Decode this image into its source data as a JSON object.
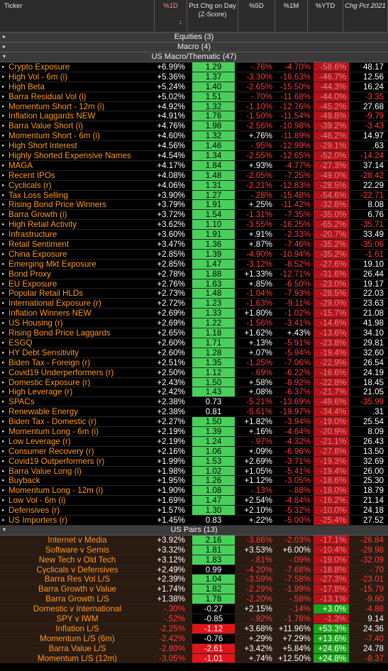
{
  "header": {
    "ticker": "Ticker",
    "d1": "%1D",
    "zscore": "Pct Chg on Day (Z-Score)",
    "d5": "%5D",
    "m1": "%1M",
    "ytd": "%YTD",
    "c2021": "Chg Pct 2021"
  },
  "groups": {
    "equities": "Equities (3)",
    "macro": "Macro (4)",
    "usmacro": "US Macro/Thematic (47)",
    "uspairs": "US Pairs (13)"
  },
  "rows": [
    {
      "name": "Crypto Exposure",
      "d1": "+6.99%",
      "z": "1.29",
      "d5": "-.76%",
      "m1": "-4.70%",
      "ytd": "-58.6%",
      "y21": "48.17"
    },
    {
      "name": "High Vol - 6m (i)",
      "d1": "+5.36%",
      "z": "1.37",
      "d5": "-3.30%",
      "m1": "-16.63%",
      "ytd": "-46.7%",
      "y21": "12.56"
    },
    {
      "name": "High Beta",
      "d1": "+5.24%",
      "z": "1.40",
      "d5": "-2.65%",
      "m1": "-15.50%",
      "ytd": "-44.3%",
      "y21": "16.24"
    },
    {
      "name": "Barra Residual Vol (i)",
      "d1": "+5.02%",
      "z": "1.51",
      "d5": "-.70%",
      "m1": "-11.68%",
      "ytd": "-44.0%",
      "y21": "-3.35"
    },
    {
      "name": "Momentum Short - 12m (i)",
      "d1": "+4.92%",
      "z": "1.32",
      "d5": "-1.10%",
      "m1": "-12.76%",
      "ytd": "-45.2%",
      "y21": "27.68"
    },
    {
      "name": "Inflation Laggards NEW",
      "d1": "+4.91%",
      "z": "1.76",
      "d5": "-1.50%",
      "m1": "-11.54%",
      "ytd": "-49.8%",
      "y21": "-9.79"
    },
    {
      "name": "Barra Value Short (i)",
      "d1": "+4.76%",
      "z": "1.98",
      "d5": "-2.56%",
      "m1": "-10.98%",
      "ytd": "-39.2%",
      "y21": "-3.43"
    },
    {
      "name": "Momentum Short - 6m (i)",
      "d1": "+4.60%",
      "z": "1.32",
      "d5": "+.76%",
      "m1": "-11.89%",
      "ytd": "-46.2%",
      "y21": "14.97"
    },
    {
      "name": "High Short Interest",
      "d1": "+4.56%",
      "z": "1.46",
      "d5": "-.95%",
      "m1": "-12.99%",
      "ytd": "-29.1%",
      "y21": ".63"
    },
    {
      "name": "Highly Shorted Expensive Names",
      "d1": "+4.54%",
      "z": "1.34",
      "d5": "-2.55%",
      "m1": "-12.65%",
      "ytd": "-52.0%",
      "y21": "-14.24"
    },
    {
      "name": "MAGA",
      "d1": "+4.17%",
      "z": "1.84",
      "d5": "+.93%",
      "m1": "-4.77%",
      "ytd": "-27.3%",
      "y21": "37.14"
    },
    {
      "name": "Recent IPOs",
      "d1": "+4.08%",
      "z": "1.48",
      "d5": "-2.05%",
      "m1": "-7.25%",
      "ytd": "-49.0%",
      "y21": "-28.42"
    },
    {
      "name": "Cyclicals (r)",
      "d1": "+4.06%",
      "z": "1.31",
      "d5": "-2.21%",
      "m1": "-12.83%",
      "ytd": "-28.5%",
      "y21": "22.29"
    },
    {
      "name": "Tax Loss Selling",
      "d1": "+3.90%",
      "z": "1.27",
      "d5": "-.28%",
      "m1": "-15.48%",
      "ytd": "-54.6%",
      "y21": "-22.71"
    },
    {
      "name": "Rising Bond Price Winners",
      "d1": "+3.79%",
      "z": "1.91",
      "d5": "+.25%",
      "m1": "-11.42%",
      "ytd": "-32.8%",
      "y21": "8.08"
    },
    {
      "name": "Barra Growth (i)",
      "d1": "+3.72%",
      "z": "1.54",
      "d5": "-1.31%",
      "m1": "-7.35%",
      "ytd": "-35.0%",
      "y21": "6.76"
    },
    {
      "name": "High Retail Activity",
      "d1": "+3.62%",
      "z": "1.10",
      "d5": "-3.55%",
      "m1": "-16.25%",
      "ytd": "-65.2%",
      "y21": "-35.71"
    },
    {
      "name": "Infrastructure",
      "d1": "+3.60%",
      "z": "1.91",
      "d5": "+.91%",
      "m1": "-2.33%",
      "ytd": "-20.7%",
      "y21": "33.49"
    },
    {
      "name": "Retail Sentiment",
      "d1": "+3.47%",
      "z": "1.36",
      "d5": "+.87%",
      "m1": "-7.46%",
      "ytd": "-35.2%",
      "y21": "-35.06"
    },
    {
      "name": "China Exposure",
      "d1": "+2.85%",
      "z": "1.39",
      "d5": "-4.90%",
      "m1": "-10.94%",
      "ytd": "-35.2%",
      "y21": "-1.61"
    },
    {
      "name": "Emerging Mkt Exposure",
      "d1": "+2.85%",
      "z": "1.47",
      "d5": "-3.12%",
      "m1": "-8.52%",
      "ytd": "-27.6%",
      "y21": "19.10"
    },
    {
      "name": "Bond Proxy",
      "d1": "+2.78%",
      "z": "1.88",
      "d5": "+1.33%",
      "m1": "-12.71%",
      "ytd": "-31.6%",
      "y21": "26.44"
    },
    {
      "name": "EU Exposure",
      "d1": "+2.76%",
      "z": "1.63",
      "d5": "+.85%",
      "m1": "-6.50%",
      "ytd": "-23.0%",
      "y21": "19.17"
    },
    {
      "name": "Popular Retail HLDs",
      "d1": "+2.73%",
      "z": "1.48",
      "d5": "-1.04%",
      "m1": "-7.93%",
      "ytd": "-28.5%",
      "y21": "22.03"
    },
    {
      "name": "International Exposure (r)",
      "d1": "+2.72%",
      "z": "1.23",
      "d5": "-1.63%",
      "m1": "-9.11%",
      "ytd": "-29.0%",
      "y21": "23.63"
    },
    {
      "name": "Inflation Winners NEW",
      "d1": "+2.69%",
      "z": "1.33",
      "d5": "+1.80%",
      "m1": "-1.02%",
      "ytd": "-15.7%",
      "y21": "21.08"
    },
    {
      "name": "US Housing (r)",
      "d1": "+2.69%",
      "z": "1.22",
      "d5": "-1.56%",
      "m1": "-3.41%",
      "ytd": "-14.6%",
      "y21": "41.98"
    },
    {
      "name": "Rising Bond Price Laggards",
      "d1": "+2.65%",
      "z": "1.18",
      "d5": "+1.62%",
      "m1": "+.43%",
      "ytd": "-13.6%",
      "y21": "34.10"
    },
    {
      "name": "ESGQ",
      "d1": "+2.60%",
      "z": "1.71",
      "d5": "+.13%",
      "m1": "-5.91%",
      "ytd": "-23.8%",
      "y21": "29.81"
    },
    {
      "name": "HY Debt Sensitivity",
      "d1": "+2.60%",
      "z": "1.28",
      "d5": "+.07%",
      "m1": "-5.94%",
      "ytd": "-19.4%",
      "y21": "32.60"
    },
    {
      "name": "Biden Tax - Foreign (r)",
      "d1": "+2.51%",
      "z": "1.35",
      "d5": "-1.25%",
      "m1": "-7.06%",
      "ytd": "-22.9%",
      "y21": "26.54"
    },
    {
      "name": "Covid19 Underperformers (r)",
      "d1": "+2.50%",
      "z": "1.12",
      "d5": "-.69%",
      "m1": "-6.22%",
      "ytd": "-16.6%",
      "y21": "24.19"
    },
    {
      "name": "Domestic Exposure (r)",
      "d1": "+2.43%",
      "z": "1.50",
      "d5": "+.58%",
      "m1": "-8.92%",
      "ytd": "-22.8%",
      "y21": "18.45"
    },
    {
      "name": "High Leverage (r)",
      "d1": "+2.42%",
      "z": "1.43",
      "d5": "+.08%",
      "m1": "-6.37%",
      "ytd": "-21.7%",
      "y21": "21.05"
    },
    {
      "name": "SPACs",
      "d1": "+2.38%",
      "z": "0.73",
      "d5": "-5.21%",
      "m1": "-13.69%",
      "ytd": "-49.6%",
      "y21": "-35.99"
    },
    {
      "name": "Renewable Energy",
      "d1": "+2.38%",
      "z": "0.81",
      "d5": "-5.61%",
      "m1": "-19.97%",
      "ytd": "-34.4%",
      "y21": ".31"
    },
    {
      "name": "Biden Tax - Domestic (r)",
      "d1": "+2.27%",
      "z": "1.50",
      "d5": "+1.82%",
      "m1": "-3.94%",
      "ytd": "-19.0%",
      "y21": "25.54"
    },
    {
      "name": "Momentum Long - 6m (i)",
      "d1": "+2.19%",
      "z": "1.39",
      "d5": "+.16%",
      "m1": "-4.64%",
      "ytd": "-20.9%",
      "y21": "8.09"
    },
    {
      "name": "Low Leverage (r)",
      "d1": "+2.19%",
      "z": "1.24",
      "d5": "-.97%",
      "m1": "-4.32%",
      "ytd": "-21.1%",
      "y21": "26.43"
    },
    {
      "name": "Consumer Recovery (r)",
      "d1": "+2.16%",
      "z": "1.06",
      "d5": "+.09%",
      "m1": "-6.96%",
      "ytd": "-27.8%",
      "y21": "13.50"
    },
    {
      "name": "Covid19 Outperformers (r)",
      "d1": "+1.99%",
      "z": "1.53",
      "d5": "+2.69%",
      "m1": "-3.71%",
      "ytd": "-19.3%",
      "y21": "32.69"
    },
    {
      "name": "Barra Value Long (i)",
      "d1": "+1.98%",
      "z": "1.02",
      "d5": "+1.05%",
      "m1": "-5.41%",
      "ytd": "-19.4%",
      "y21": "26.00"
    },
    {
      "name": "Buyback",
      "d1": "+1.95%",
      "z": "1.26",
      "d5": "+1.12%",
      "m1": "-3.05%",
      "ytd": "-18.6%",
      "y21": "25.30"
    },
    {
      "name": "Momentum Long - 12m (i)",
      "d1": "+1.90%",
      "z": "1.08",
      "d5": "-.13%",
      "m1": "-.88%",
      "ytd": "-18.0%",
      "y21": "18.79"
    },
    {
      "name": "Low Vol - 6m (i)",
      "d1": "+1.69%",
      "z": "1.47",
      "d5": "+2.54%",
      "m1": "-4.84%",
      "ytd": "-16.2%",
      "y21": "21.14"
    },
    {
      "name": "Defensives (r)",
      "d1": "+1.57%",
      "z": "1.30",
      "d5": "+2.10%",
      "m1": "-5.32%",
      "ytd": "-10.0%",
      "y21": "24.18"
    },
    {
      "name": "US Importers (r)",
      "d1": "+1.45%",
      "z": "0.83",
      "d5": "+.22%",
      "m1": "-5.00%",
      "ytd": "-25.4%",
      "y21": "27.52"
    }
  ],
  "pairs": [
    {
      "name": "Internet v Media",
      "d1": "+3.92%",
      "z": "2.16",
      "d5": "-3.86%",
      "m1": "-2.03%",
      "ytd": "-17.1%",
      "y21": "-26.84"
    },
    {
      "name": "Software v Semis",
      "d1": "+3.32%",
      "z": "1.81",
      "d5": "+3.53%",
      "m1": "+6.00%",
      "ytd": "-10.4%",
      "y21": "-29.98"
    },
    {
      "name": "New Tech v Old Tech",
      "d1": "+3.12%",
      "z": "1.83",
      "d5": "-.81%",
      "m1": "-.09%",
      "ytd": "-19.0%",
      "y21": "-32.09"
    },
    {
      "name": "Cyclicals v Defensives",
      "d1": "+2.49%",
      "z": "0.99",
      "d5": "-4.20%",
      "m1": "-7.68%",
      "ytd": "-18.8%",
      "y21": "-.70"
    },
    {
      "name": "Barra Res Vol L/S",
      "d1": "+2.39%",
      "z": "1.04",
      "d5": "-3.59%",
      "m1": "-7.58%",
      "ytd": "-27.3%",
      "y21": "-23.01"
    },
    {
      "name": "Barra Growth v Value",
      "d1": "+1.74%",
      "z": "1.82",
      "d5": "-2.29%",
      "m1": "-1.99%",
      "ytd": "-17.8%",
      "y21": "-15.79"
    },
    {
      "name": "Barra Growth L/S",
      "d1": "+1.38%",
      "z": "1.78",
      "d5": "-2.20%",
      "m1": "-.58%",
      "ytd": "-13.1%",
      "y21": "-9.80"
    },
    {
      "name": "Domestic v International",
      "d1": "-.30%",
      "z": "-0.27",
      "d5": "+2.15%",
      "m1": "-.14%",
      "ytd": "+3.0%",
      "y21": "-4.88"
    },
    {
      "name": "SPY v IWM",
      "d1": "-.52%",
      "z": "-0.85",
      "d5": "-.92%",
      "m1": "-1.78%",
      "ytd": "-1.3%",
      "y21": "9.14"
    },
    {
      "name": "Inflation L/S",
      "d1": "-2.25%",
      "z": "-1.12",
      "d5": "+3.68%",
      "m1": "+11.96%",
      "ytd": "+53.3%",
      "y21": "24.36"
    },
    {
      "name": "Momentum L/S (6m)",
      "d1": "-2.42%",
      "z": "-0.76",
      "d5": "+.29%",
      "m1": "+7.29%",
      "ytd": "+13.6%",
      "y21": "-7.40"
    },
    {
      "name": "Barra Value L/S",
      "d1": "-2.80%",
      "z": "-2.61",
      "d5": "+3.42%",
      "m1": "+5.84%",
      "ytd": "+24.6%",
      "y21": "24.78"
    },
    {
      "name": "Momentum L/S (12m)",
      "d1": "-3.05%",
      "z": "-1.01",
      "d5": "+.74%",
      "m1": "+12.50%",
      "ytd": "+24.8%",
      "y21": "-8.37"
    }
  ]
}
